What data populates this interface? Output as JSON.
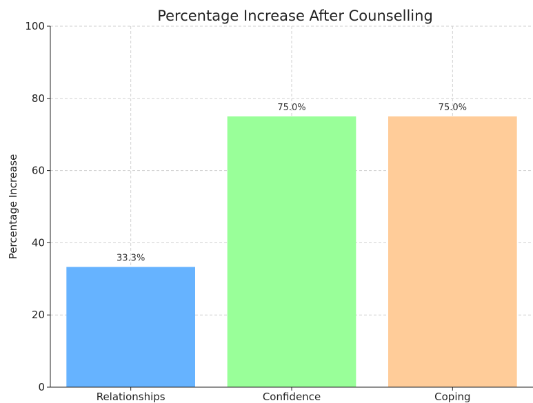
{
  "chart_data": {
    "type": "bar",
    "title": "Percentage Increase After Counselling",
    "xlabel": "",
    "ylabel": "Percentage Increase",
    "categories": [
      "Relationships",
      "Confidence",
      "Coping"
    ],
    "values": [
      33.3,
      75.0,
      75.0
    ],
    "value_labels": [
      "33.3%",
      "75.0%",
      "75.0%"
    ],
    "colors": [
      "#66b3ff",
      "#99ff99",
      "#ffcc99"
    ],
    "ylim": [
      0,
      100
    ],
    "yticks": [
      0,
      20,
      40,
      60,
      80,
      100
    ],
    "grid": true,
    "legend": false
  }
}
